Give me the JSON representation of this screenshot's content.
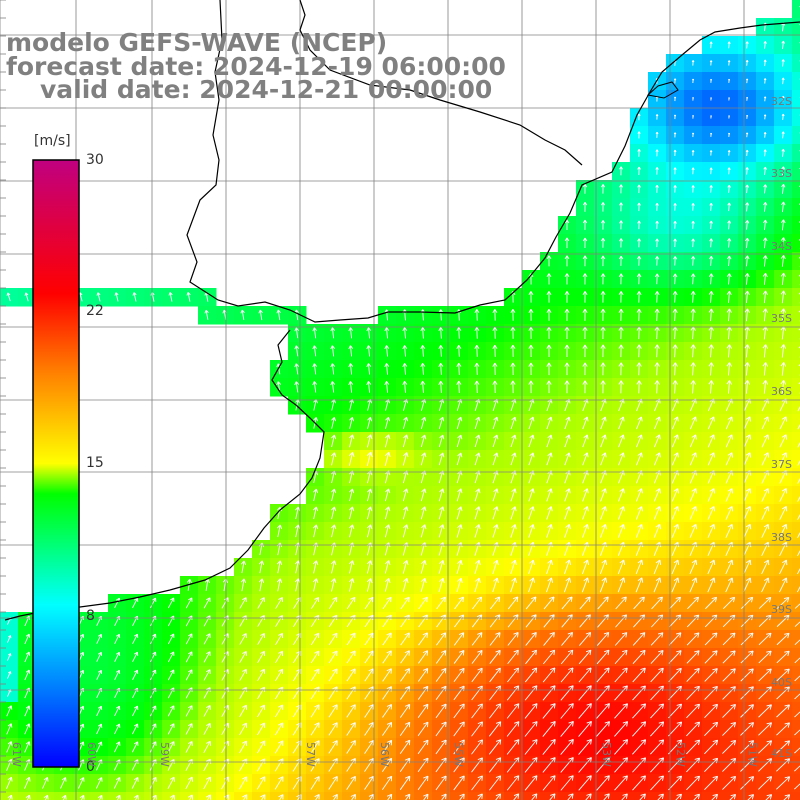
{
  "title": {
    "line1": "modelo GEFS-WAVE (NCEP)",
    "line2": "forecast date: 2024-12-19 06:00:00",
    "line3": "valid date: 2024-12-21 00:00:00"
  },
  "colorbar": {
    "unit": "[m/s]",
    "ticks": [
      "30",
      "22",
      "15",
      "8",
      "0"
    ],
    "tick_values": [
      30,
      22,
      15,
      8,
      0
    ],
    "range": [
      0,
      30
    ],
    "colors": [
      "#0000ff",
      "#00ffff",
      "#00ff00",
      "#ffff00",
      "#ff8000",
      "#ff0000",
      "#c00080"
    ]
  },
  "map": {
    "lat_labels": [
      "32S",
      "33S",
      "34S",
      "35S",
      "36S",
      "37S",
      "38S",
      "39S",
      "40S",
      "41S"
    ],
    "lon_labels": [
      "61W",
      "60W",
      "59W",
      "57W",
      "56W",
      "55W",
      "53W",
      "52W",
      "51W"
    ],
    "land_color": "#ffffff",
    "grid_color": "#808080",
    "arrow_color": "#ffffff"
  }
}
